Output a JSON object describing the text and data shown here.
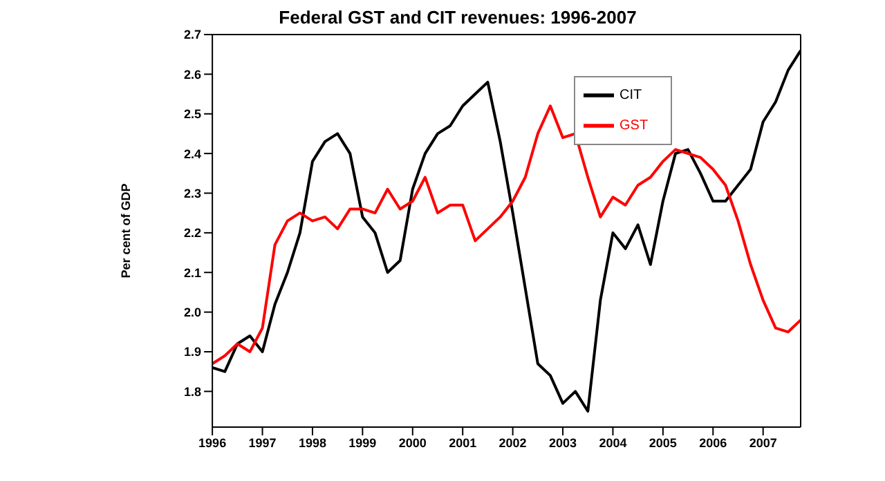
{
  "chart_data": {
    "type": "line",
    "title": "Federal GST and CIT revenues: 1996-2007",
    "ylabel": "Per cent of GDP",
    "x": [
      1996,
      1996.25,
      1996.5,
      1996.75,
      1997,
      1997.25,
      1997.5,
      1997.75,
      1998,
      1998.25,
      1998.5,
      1998.75,
      1999,
      1999.25,
      1999.5,
      1999.75,
      2000,
      2000.25,
      2000.5,
      2000.75,
      2001,
      2001.25,
      2001.5,
      2001.75,
      2002,
      2002.25,
      2002.5,
      2002.75,
      2003,
      2003.25,
      2003.5,
      2003.75,
      2004,
      2004.25,
      2004.5,
      2004.75,
      2005,
      2005.25,
      2005.5,
      2005.75,
      2006,
      2006.25,
      2006.5,
      2006.75,
      2007,
      2007.25,
      2007.5,
      2007.75
    ],
    "series": [
      {
        "name": "CIT",
        "color": "#000000",
        "values": [
          1.86,
          1.85,
          1.92,
          1.94,
          1.9,
          2.02,
          2.1,
          2.2,
          2.38,
          2.43,
          2.45,
          2.4,
          2.24,
          2.2,
          2.1,
          2.13,
          2.31,
          2.4,
          2.45,
          2.47,
          2.52,
          2.55,
          2.58,
          2.43,
          2.25,
          2.06,
          1.87,
          1.84,
          1.77,
          1.8,
          1.75,
          2.03,
          2.2,
          2.16,
          2.22,
          2.12,
          2.28,
          2.4,
          2.41,
          2.35,
          2.28,
          2.28,
          2.32,
          2.36,
          2.48,
          2.53,
          2.61,
          2.66
        ]
      },
      {
        "name": "GST",
        "color": "#ff0000",
        "values": [
          1.87,
          1.89,
          1.92,
          1.9,
          1.96,
          2.17,
          2.23,
          2.25,
          2.23,
          2.24,
          2.21,
          2.26,
          2.26,
          2.25,
          2.31,
          2.26,
          2.28,
          2.34,
          2.25,
          2.27,
          2.27,
          2.18,
          2.21,
          2.24,
          2.28,
          2.34,
          2.45,
          2.52,
          2.44,
          2.45,
          2.34,
          2.24,
          2.29,
          2.27,
          2.32,
          2.34,
          2.38,
          2.41,
          2.4,
          2.39,
          2.36,
          2.32,
          2.23,
          2.12,
          2.03,
          1.96,
          1.95,
          1.98
        ]
      }
    ],
    "xlim": [
      1996,
      2007.75
    ],
    "xticks": [
      1996,
      1997,
      1998,
      1999,
      2000,
      2001,
      2002,
      2003,
      2004,
      2005,
      2006,
      2007
    ],
    "ylim": [
      1.71,
      2.7
    ],
    "yticks": [
      1.8,
      1.9,
      {
        "value": 2.0,
        "label": "2.0"
      },
      2.1,
      2.2,
      2.3,
      2.4,
      2.5,
      2.6,
      2.7
    ],
    "legend": "top right",
    "line_style": "solid"
  }
}
